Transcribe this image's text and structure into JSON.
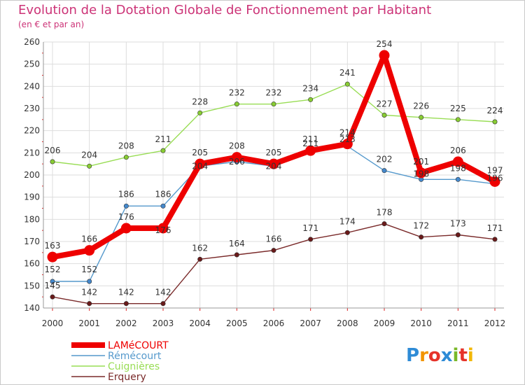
{
  "chart_data": {
    "type": "line",
    "title": "Evolution de la Dotation Globale de Fonctionnement par Habitant",
    "subtitle": "(en € et par an)",
    "xlabel": "",
    "ylabel": "",
    "ylim": [
      140,
      260
    ],
    "yticks": [
      140,
      150,
      160,
      170,
      180,
      190,
      200,
      210,
      220,
      230,
      240,
      250,
      260
    ],
    "grid": true,
    "legend_position": "bottom-left",
    "x": [
      "2000",
      "2001",
      "2002",
      "2003",
      "2004",
      "2005",
      "2006",
      "2007",
      "2008",
      "2009",
      "2010",
      "2011",
      "2012"
    ],
    "series": [
      {
        "name": "Cuignières",
        "color": "#99dd55",
        "marker": "#88cc33",
        "values": [
          206,
          204,
          208,
          211,
          228,
          232,
          232,
          234,
          241,
          227,
          226,
          225,
          224
        ]
      },
      {
        "name": "Erquery",
        "color": "#7a2a2a",
        "marker": "#6a1a1a",
        "values": [
          145,
          142,
          142,
          142,
          162,
          164,
          166,
          171,
          174,
          178,
          172,
          173,
          171
        ]
      },
      {
        "name": "Rémécourt",
        "color": "#5599cc",
        "marker": "#4488cc",
        "values": [
          152,
          152,
          186,
          186,
          204,
          206,
          204,
          211,
          213,
          202,
          198,
          198,
          196
        ]
      },
      {
        "name": "LAMéCOURT",
        "color": "#ee0000",
        "marker": "#ee0000",
        "values": [
          163,
          166,
          176,
          176,
          205,
          208,
          205,
          211,
          214,
          254,
          201,
          206,
          197
        ]
      }
    ],
    "legend": [
      "LAMéCOURT",
      "Rémécourt",
      "Cuignières",
      "Erquery"
    ]
  },
  "colors": {
    "title": "#cc3377",
    "axis_text": "#333333",
    "grid": "#dddddd",
    "tick_red": "#dd2222"
  },
  "logo": "Proxiti"
}
